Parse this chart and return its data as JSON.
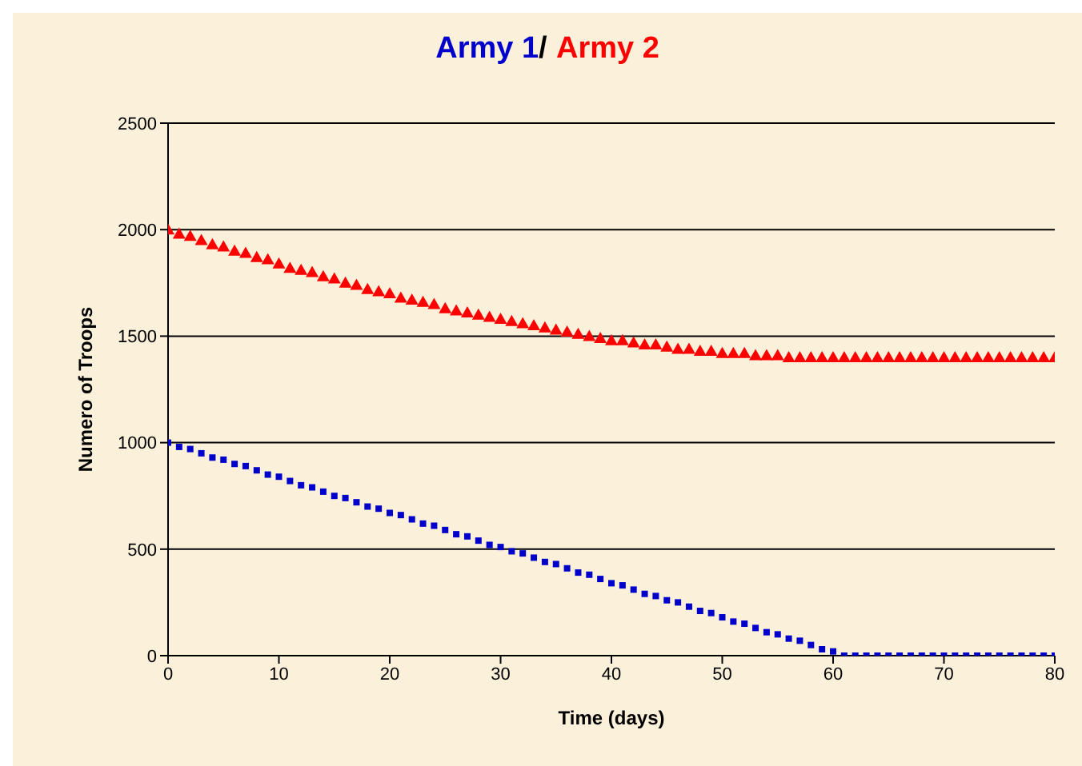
{
  "chart_data": {
    "type": "scatter",
    "annotations": [
      "/"
    ],
    "xlabel": "Time (days)",
    "ylabel": "Numero of Troops",
    "x": [
      0,
      1,
      2,
      3,
      4,
      5,
      6,
      7,
      8,
      9,
      10,
      11,
      12,
      13,
      14,
      15,
      16,
      17,
      18,
      19,
      20,
      21,
      22,
      23,
      24,
      25,
      26,
      27,
      28,
      29,
      30,
      31,
      32,
      33,
      34,
      35,
      36,
      37,
      38,
      39,
      40,
      41,
      42,
      43,
      44,
      45,
      46,
      47,
      48,
      49,
      50,
      51,
      52,
      53,
      54,
      55,
      56,
      57,
      58,
      59,
      60,
      61,
      62,
      63,
      64,
      65,
      66,
      67,
      68,
      69,
      70,
      71,
      72,
      73,
      74,
      75,
      76,
      77,
      78,
      79,
      80
    ],
    "series": [
      {
        "name": "Army 1",
        "color": "#0000cc",
        "marker": "square",
        "values": [
          1000,
          980,
          970,
          950,
          930,
          920,
          900,
          890,
          870,
          850,
          840,
          820,
          800,
          790,
          770,
          750,
          740,
          720,
          700,
          690,
          670,
          660,
          640,
          620,
          610,
          590,
          570,
          560,
          540,
          520,
          510,
          490,
          480,
          460,
          440,
          430,
          410,
          390,
          380,
          360,
          340,
          330,
          310,
          290,
          280,
          260,
          250,
          230,
          210,
          200,
          180,
          160,
          150,
          130,
          110,
          100,
          80,
          70,
          50,
          30,
          20,
          0,
          0,
          0,
          0,
          0,
          0,
          0,
          0,
          0,
          0,
          0,
          0,
          0,
          0,
          0,
          0,
          0,
          0,
          0,
          0
        ]
      },
      {
        "name": "Army 2",
        "color": "#ff0000",
        "marker": "triangle",
        "values": [
          2000,
          1980,
          1970,
          1950,
          1930,
          1920,
          1900,
          1890,
          1870,
          1860,
          1840,
          1820,
          1810,
          1800,
          1780,
          1770,
          1750,
          1740,
          1720,
          1710,
          1700,
          1680,
          1670,
          1660,
          1650,
          1630,
          1620,
          1610,
          1600,
          1590,
          1580,
          1570,
          1560,
          1550,
          1540,
          1530,
          1520,
          1510,
          1500,
          1490,
          1480,
          1480,
          1470,
          1460,
          1460,
          1450,
          1440,
          1440,
          1430,
          1430,
          1420,
          1420,
          1420,
          1410,
          1410,
          1410,
          1400,
          1400,
          1400,
          1400,
          1400,
          1400,
          1400,
          1400,
          1400,
          1400,
          1400,
          1400,
          1400,
          1400,
          1400,
          1400,
          1400,
          1400,
          1400,
          1400,
          1400,
          1400,
          1400,
          1400,
          1400
        ]
      }
    ],
    "xlim": [
      0,
      80
    ],
    "xticks": [
      0,
      10,
      20,
      30,
      40,
      50,
      60,
      70,
      80
    ],
    "ylim": [
      0,
      2500
    ],
    "yticks": [
      0,
      500,
      1000,
      1500,
      2000,
      2500
    ],
    "grid": "y",
    "legend": "top"
  }
}
